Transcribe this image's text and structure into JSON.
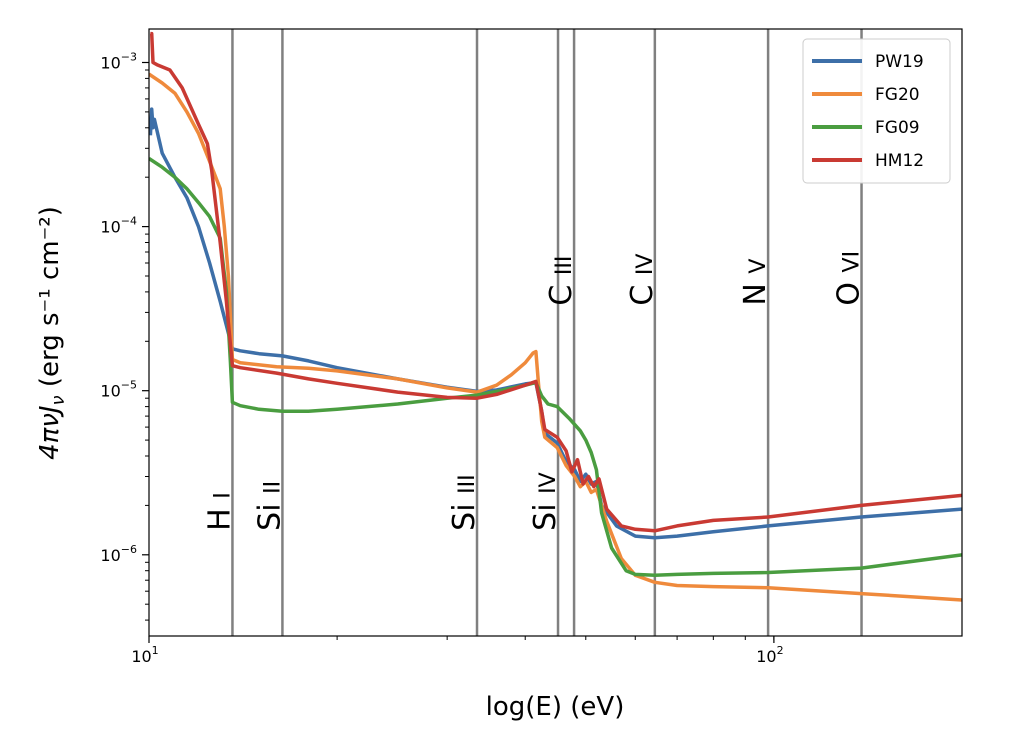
{
  "chart_data": {
    "type": "line",
    "xlabel": "log(E) (eV)",
    "ylabel": "4πνJ_ν (erg s^-1 cm^-2)",
    "xscale": "log",
    "yscale": "log",
    "xlim": [
      10,
      200
    ],
    "ylim": [
      3.2e-07,
      0.0016
    ],
    "x_ticks": [
      {
        "value": 10,
        "base": "10",
        "exp": "1"
      },
      {
        "value": 100,
        "base": "10",
        "exp": "2"
      }
    ],
    "y_ticks": [
      {
        "value": 1e-06,
        "base": "10",
        "exp": "−6"
      },
      {
        "value": 1e-05,
        "base": "10",
        "exp": "−5"
      },
      {
        "value": 0.0001,
        "base": "10",
        "exp": "−4"
      },
      {
        "value": 0.001,
        "base": "10",
        "exp": "−3"
      }
    ],
    "ion_lines": [
      {
        "label": "H I",
        "energy": 13.6,
        "label_y": 1.4e-06
      },
      {
        "label": "Si II",
        "energy": 16.35,
        "label_y": 1.4e-06
      },
      {
        "label": "Si III",
        "energy": 33.49,
        "label_y": 1.4e-06
      },
      {
        "label": "Si IV",
        "energy": 45.14,
        "label_y": 1.4e-06
      },
      {
        "label": "C III",
        "energy": 47.89,
        "label_y": 3.3e-05
      },
      {
        "label": "C IV",
        "energy": 64.49,
        "label_y": 3.3e-05
      },
      {
        "label": "N V",
        "energy": 97.89,
        "label_y": 3.3e-05
      },
      {
        "label": "O VI",
        "energy": 138.12,
        "label_y": 3.3e-05
      }
    ],
    "legend_position": "top-right",
    "series": [
      {
        "name": "PW19",
        "color": "#3d6fa8",
        "points": [
          [
            10.05,
            0.00036
          ],
          [
            10.1,
            0.00052
          ],
          [
            10.15,
            0.0004
          ],
          [
            10.2,
            0.00045
          ],
          [
            10.5,
            0.00028
          ],
          [
            11,
            0.0002
          ],
          [
            11.5,
            0.00015
          ],
          [
            12,
            0.0001
          ],
          [
            12.5,
            6e-05
          ],
          [
            13,
            3.5e-05
          ],
          [
            13.3,
            2.5e-05
          ],
          [
            13.6,
            1.8e-05
          ],
          [
            14,
            1.75e-05
          ],
          [
            15,
            1.68e-05
          ],
          [
            16.35,
            1.63e-05
          ],
          [
            18,
            1.52e-05
          ],
          [
            20,
            1.38e-05
          ],
          [
            25,
            1.18e-05
          ],
          [
            30,
            1.05e-05
          ],
          [
            33.49,
            9.9e-06
          ],
          [
            36,
            1.01e-05
          ],
          [
            40,
            1.1e-05
          ],
          [
            41.6,
            1.12e-05
          ],
          [
            42.5,
            7.5e-06
          ],
          [
            43,
            5.5e-06
          ],
          [
            45,
            4.8e-06
          ],
          [
            46.5,
            3.7e-06
          ],
          [
            48,
            3.3e-06
          ],
          [
            49,
            2.8e-06
          ],
          [
            50,
            3.1e-06
          ],
          [
            51,
            2.7e-06
          ],
          [
            52,
            2.8e-06
          ],
          [
            53,
            2e-06
          ],
          [
            56,
            1.5e-06
          ],
          [
            60,
            1.3e-06
          ],
          [
            64.49,
            1.27e-06
          ],
          [
            70,
            1.3e-06
          ],
          [
            80,
            1.38e-06
          ],
          [
            97.89,
            1.5e-06
          ],
          [
            138,
            1.7e-06
          ],
          [
            200,
            1.9e-06
          ]
        ]
      },
      {
        "name": "FG20",
        "color": "#ef8a3c",
        "points": [
          [
            10,
            0.00085
          ],
          [
            10.5,
            0.00075
          ],
          [
            11,
            0.00065
          ],
          [
            11.5,
            0.0005
          ],
          [
            12,
            0.00037
          ],
          [
            12.5,
            0.00025
          ],
          [
            13,
            0.00017
          ],
          [
            13.2,
            0.0001
          ],
          [
            13.4,
            5e-05
          ],
          [
            13.6,
            1.55e-05
          ],
          [
            14,
            1.48e-05
          ],
          [
            16,
            1.4e-05
          ],
          [
            18,
            1.37e-05
          ],
          [
            20,
            1.32e-05
          ],
          [
            25,
            1.18e-05
          ],
          [
            30,
            1.04e-05
          ],
          [
            33.49,
            9.8e-06
          ],
          [
            36,
            1.08e-05
          ],
          [
            38,
            1.25e-05
          ],
          [
            40,
            1.48e-05
          ],
          [
            41.2,
            1.7e-05
          ],
          [
            41.6,
            1.73e-05
          ],
          [
            42,
            1.1e-05
          ],
          [
            42.5,
            6.5e-06
          ],
          [
            43,
            5.2e-06
          ],
          [
            45,
            4.5e-06
          ],
          [
            46.5,
            3.5e-06
          ],
          [
            48,
            3e-06
          ],
          [
            49,
            2.6e-06
          ],
          [
            50,
            2.8e-06
          ],
          [
            51,
            2.4e-06
          ],
          [
            52,
            2.5e-06
          ],
          [
            54,
            1.6e-06
          ],
          [
            57,
            9.5e-07
          ],
          [
            60,
            7.5e-07
          ],
          [
            64.49,
            6.8e-07
          ],
          [
            70,
            6.5e-07
          ],
          [
            80,
            6.4e-07
          ],
          [
            97.89,
            6.3e-07
          ],
          [
            138,
            5.8e-07
          ],
          [
            200,
            5.3e-07
          ]
        ]
      },
      {
        "name": "FG09",
        "color": "#4a9d40",
        "points": [
          [
            10,
            0.00026
          ],
          [
            10.5,
            0.00023
          ],
          [
            11,
            0.0002
          ],
          [
            11.5,
            0.00017
          ],
          [
            12,
            0.00014
          ],
          [
            12.5,
            0.000115
          ],
          [
            13,
            8.5e-05
          ],
          [
            13.3,
            4e-05
          ],
          [
            13.5,
            1.5e-05
          ],
          [
            13.6,
            8.5e-06
          ],
          [
            14,
            8.1e-06
          ],
          [
            15,
            7.7e-06
          ],
          [
            16.35,
            7.5e-06
          ],
          [
            18,
            7.5e-06
          ],
          [
            20,
            7.7e-06
          ],
          [
            25,
            8.3e-06
          ],
          [
            30,
            9e-06
          ],
          [
            33.49,
            9.4e-06
          ],
          [
            36,
            9.9e-06
          ],
          [
            40,
            1.08e-05
          ],
          [
            41.6,
            1.12e-05
          ],
          [
            42.5,
            9.3e-06
          ],
          [
            43.5,
            8.3e-06
          ],
          [
            45,
            8e-06
          ],
          [
            47,
            6.8e-06
          ],
          [
            49,
            5.7e-06
          ],
          [
            50,
            5e-06
          ],
          [
            51,
            4.2e-06
          ],
          [
            52,
            3.3e-06
          ],
          [
            53,
            1.8e-06
          ],
          [
            55,
            1.1e-06
          ],
          [
            58,
            8e-07
          ],
          [
            60,
            7.6e-07
          ],
          [
            64.49,
            7.5e-07
          ],
          [
            70,
            7.6e-07
          ],
          [
            80,
            7.7e-07
          ],
          [
            97.89,
            7.8e-07
          ],
          [
            138,
            8.3e-07
          ],
          [
            200,
            1e-06
          ]
        ]
      },
      {
        "name": "HM12",
        "color": "#c93a33",
        "points": [
          [
            10.05,
            0.0015
          ],
          [
            10.1,
            0.0015
          ],
          [
            10.15,
            0.001
          ],
          [
            10.3,
            0.00097
          ],
          [
            10.8,
            0.0009
          ],
          [
            11.3,
            0.0007
          ],
          [
            12,
            0.00042
          ],
          [
            12.4,
            0.00032
          ],
          [
            12.6,
            0.00022
          ],
          [
            13,
            8e-05
          ],
          [
            13.3,
            3.5e-05
          ],
          [
            13.6,
            1.42e-05
          ],
          [
            14,
            1.38e-05
          ],
          [
            16,
            1.28e-05
          ],
          [
            18,
            1.18e-05
          ],
          [
            20,
            1.11e-05
          ],
          [
            25,
            9.8e-06
          ],
          [
            30,
            9.1e-06
          ],
          [
            33.49,
            9e-06
          ],
          [
            36,
            9.5e-06
          ],
          [
            40,
            1.08e-05
          ],
          [
            41.6,
            1.14e-05
          ],
          [
            42.5,
            7.5e-06
          ],
          [
            43,
            5.8e-06
          ],
          [
            45,
            5.2e-06
          ],
          [
            46.5,
            4.3e-06
          ],
          [
            47.5,
            3.2e-06
          ],
          [
            48.5,
            3.8e-06
          ],
          [
            49.5,
            2.7e-06
          ],
          [
            50.5,
            3e-06
          ],
          [
            51.5,
            2.6e-06
          ],
          [
            52.5,
            2.9e-06
          ],
          [
            54,
            1.9e-06
          ],
          [
            57,
            1.5e-06
          ],
          [
            60,
            1.43e-06
          ],
          [
            64.49,
            1.4e-06
          ],
          [
            70,
            1.5e-06
          ],
          [
            80,
            1.62e-06
          ],
          [
            97.89,
            1.7e-06
          ],
          [
            138,
            2e-06
          ],
          [
            200,
            2.3e-06
          ]
        ]
      }
    ]
  }
}
